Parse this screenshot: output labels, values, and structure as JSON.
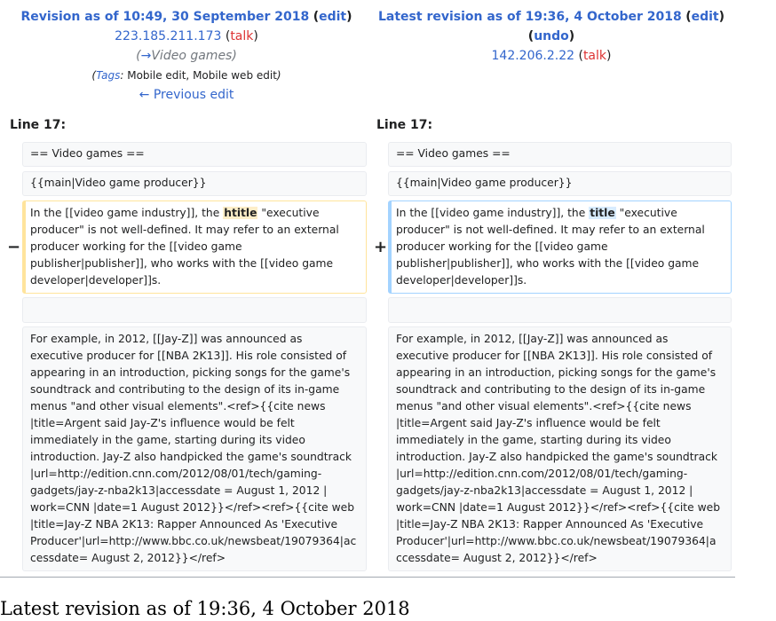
{
  "left_header": {
    "title": "Revision as of 10:49, 30 September 2018",
    "edit": "edit",
    "user": "223.185.211.173",
    "talk": "talk",
    "comment_arrow": "→",
    "comment": "Video games",
    "tags_label": "Tags",
    "tags": "Mobile edit, Mobile web edit",
    "prev": "← Previous edit"
  },
  "right_header": {
    "title": "Latest revision as of 19:36, 4 October 2018",
    "edit": "edit",
    "undo": "undo",
    "user": "142.206.2.22",
    "talk": "talk"
  },
  "line_label": "Line 17:",
  "rows": {
    "r1": "== Video games ==",
    "r2": "{{main|Video game producer}}",
    "r3_pre": "In the [[video game industry]], the",
    "r3_del_word": "htitle",
    "r3_add_word": "title",
    "r3_post": "\"executive",
    "r3_l2": "producer\" is not well-defined. It may refer to an external",
    "r3_l3": "producer working for the [[video game",
    "r3_l4": "publisher|publisher]], who works with the [[video game",
    "r3_l5": "developer|developer]]s.",
    "r5": [
      "For example, in 2012, [[Jay-Z]] was announced as",
      "executive producer for [[NBA 2K13]]. His role consisted of",
      "appearing in an introduction, picking songs for the game's",
      "soundtrack and contributing to the design of its in-game",
      "menus \"and other visual elements\".<ref>{{cite news",
      "|title=Argent said Jay-Z's influence would be felt",
      "immediately in the game, starting during its video",
      "introduction. Jay-Z also handpicked the game's soundtrack",
      "|url=http://edition.cnn.com/2012/08/01/tech/gaming-",
      "gadgets/jay-z-nba2k13|accessdate = August 1, 2012 |",
      "work=CNN |date=1 August 2012}}</ref><ref>{{cite web",
      "|title=Jay-Z NBA 2K13: Rapper Announced As 'Executive",
      "Producer'|url=http://www.bbc.co.uk/newsbeat/19079364|ac",
      "cessdate= August 2, 2012}}</ref>"
    ],
    "r5_right_l13": "Producer'|url=http://www.bbc.co.uk/newsbeat/19079364|a",
    "r5_right_l14": "ccessdate= August 2, 2012}}</ref>"
  },
  "markers": {
    "minus": "−",
    "plus": "+"
  },
  "bottom_heading": "Latest revision as of 19:36, 4 October 2018",
  "colors": {
    "link": "#3366cc",
    "talk": "#dd3333",
    "del_border": "#ffe49c",
    "add_border": "#a3d3ff"
  }
}
